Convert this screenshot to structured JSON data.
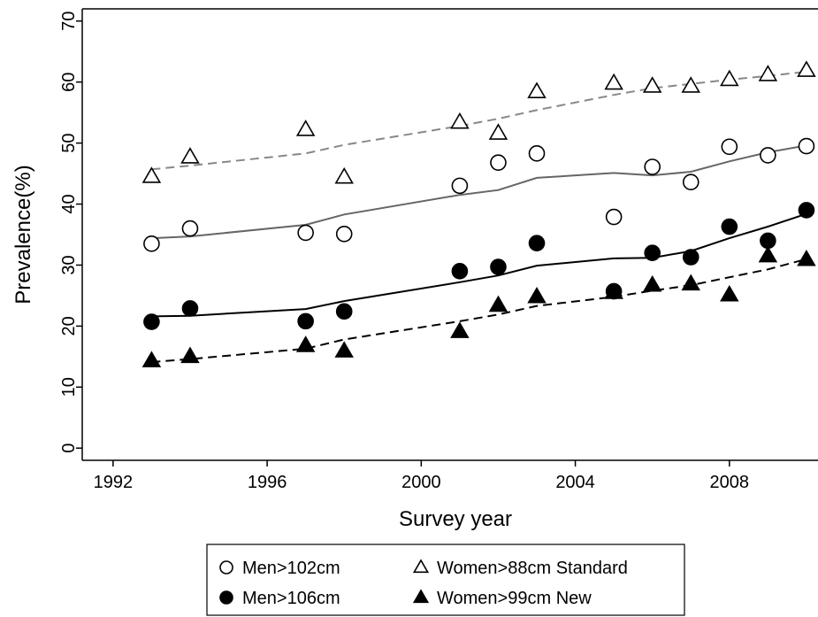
{
  "chart_data": {
    "type": "scatter",
    "xlabel": "Survey year",
    "ylabel": "Prevalence(%)",
    "xlim": [
      1991.2,
      2010.3
    ],
    "ylim": [
      -2,
      72
    ],
    "xticks": [
      1992,
      1996,
      2000,
      2004,
      2008
    ],
    "yticks": [
      0,
      10,
      20,
      30,
      40,
      50,
      60,
      70
    ],
    "grid": false,
    "legend": {
      "position": "bottom",
      "columns": 2
    },
    "series": [
      {
        "name": "Men>102cm",
        "marker": "circle-open",
        "line_style": "solid",
        "line_color": "#666666",
        "x": [
          1993,
          1994,
          1997,
          1998,
          2001,
          2002,
          2003,
          2005,
          2006,
          2007,
          2008,
          2009,
          2010
        ],
        "points": [
          33.5,
          36.0,
          35.3,
          35.1,
          43.0,
          46.8,
          48.3,
          37.9,
          46.1,
          43.6,
          49.4,
          48.0,
          49.5
        ],
        "trend": [
          34.4,
          34.7,
          36.6,
          38.3,
          41.5,
          42.3,
          44.3,
          45.1,
          44.7,
          45.3,
          47.0,
          48.5,
          49.6
        ]
      },
      {
        "name": "Women>88cm Standard",
        "marker": "triangle-open",
        "line_style": "dashed",
        "line_color": "#888888",
        "x": [
          1993,
          1994,
          1997,
          1998,
          2001,
          2002,
          2003,
          2005,
          2006,
          2007,
          2008,
          2009,
          2010
        ],
        "points": [
          44.5,
          47.7,
          52.2,
          44.4,
          53.4,
          51.6,
          58.4,
          59.8,
          59.3,
          59.3,
          60.4,
          61.2,
          61.9
        ],
        "trend": [
          45.7,
          46.3,
          48.3,
          49.7,
          52.8,
          54.0,
          55.4,
          57.9,
          59.0,
          59.7,
          60.4,
          61.0,
          61.7
        ]
      },
      {
        "name": "Men>106cm",
        "marker": "circle-filled",
        "line_style": "solid",
        "line_color": "#000000",
        "x": [
          1993,
          1994,
          1997,
          1998,
          2001,
          2002,
          2003,
          2005,
          2006,
          2007,
          2008,
          2009,
          2010
        ],
        "points": [
          20.7,
          22.9,
          20.8,
          22.4,
          29.0,
          29.7,
          33.6,
          25.7,
          32.0,
          31.3,
          36.3,
          34.0,
          39.0
        ],
        "trend": [
          21.6,
          21.7,
          22.8,
          24.1,
          27.2,
          28.3,
          29.9,
          31.1,
          31.2,
          32.3,
          34.4,
          36.3,
          38.4
        ]
      },
      {
        "name": "Women>99cm New",
        "marker": "triangle-filled",
        "line_style": "dashed",
        "line_color": "#000000",
        "x": [
          1993,
          1994,
          1997,
          1998,
          2001,
          2002,
          2003,
          2005,
          2006,
          2007,
          2008,
          2009,
          2010
        ],
        "points": [
          14.3,
          15.0,
          16.8,
          15.9,
          19.1,
          23.4,
          24.8,
          25.5,
          26.7,
          26.9,
          25.1,
          31.5,
          30.9
        ],
        "trend": [
          14.1,
          14.6,
          16.3,
          17.8,
          20.8,
          21.9,
          23.3,
          24.8,
          25.8,
          26.7,
          28.0,
          29.3,
          31.0
        ]
      }
    ]
  }
}
